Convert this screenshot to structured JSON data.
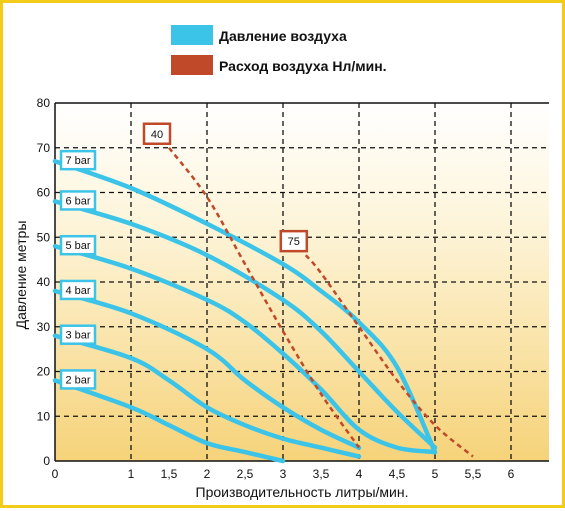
{
  "chart_data": {
    "type": "line",
    "xlabel": "Производительность  литры/мин.",
    "ylabel": "Давление метры",
    "xlim": [
      0,
      6.5
    ],
    "ylim": [
      0,
      80
    ],
    "x_ticks": [
      {
        "v": 0,
        "label": "0"
      },
      {
        "v": 1,
        "label": "1"
      },
      {
        "v": 1.5,
        "label": "1,5"
      },
      {
        "v": 2,
        "label": "2"
      },
      {
        "v": 2.5,
        "label": "2,5"
      },
      {
        "v": 3,
        "label": "3"
      },
      {
        "v": 3.5,
        "label": "3,5"
      },
      {
        "v": 4,
        "label": "4"
      },
      {
        "v": 4.5,
        "label": "4,5"
      },
      {
        "v": 5,
        "label": "5"
      },
      {
        "v": 5.5,
        "label": "5,5"
      },
      {
        "v": 6,
        "label": "6"
      }
    ],
    "y_ticks": [
      0,
      10,
      20,
      30,
      40,
      50,
      60,
      70,
      80
    ],
    "grid": true,
    "legend": {
      "position": "top",
      "entries": [
        {
          "label": "Давление воздуха",
          "color": "#3cc3e8"
        },
        {
          "label": "Расход воздуха  Нл/мин.",
          "color": "#c0492a"
        }
      ]
    },
    "pressure_series": [
      {
        "name": "7 bar",
        "points": [
          [
            0,
            67
          ],
          [
            1,
            61
          ],
          [
            2,
            53
          ],
          [
            3,
            44
          ],
          [
            3.5,
            38
          ],
          [
            4,
            31
          ],
          [
            4.5,
            21
          ],
          [
            5,
            2
          ]
        ]
      },
      {
        "name": "6 bar",
        "points": [
          [
            0,
            58
          ],
          [
            1,
            53
          ],
          [
            2,
            46
          ],
          [
            3,
            36
          ],
          [
            3.5,
            29
          ],
          [
            4,
            20
          ],
          [
            4.5,
            11
          ],
          [
            5,
            3
          ]
        ]
      },
      {
        "name": "5 bar",
        "points": [
          [
            0,
            48
          ],
          [
            1,
            43
          ],
          [
            2,
            36
          ],
          [
            2.5,
            31
          ],
          [
            3,
            24
          ],
          [
            3.5,
            16
          ],
          [
            4,
            7
          ],
          [
            4.5,
            3
          ],
          [
            5,
            2
          ]
        ]
      },
      {
        "name": "4 bar",
        "points": [
          [
            0,
            38
          ],
          [
            1,
            33
          ],
          [
            2,
            25
          ],
          [
            2.5,
            18
          ],
          [
            3,
            12
          ],
          [
            3.5,
            7
          ],
          [
            4,
            3
          ]
        ]
      },
      {
        "name": "3 bar",
        "points": [
          [
            0,
            28
          ],
          [
            1,
            23
          ],
          [
            1.5,
            18
          ],
          [
            2,
            12
          ],
          [
            2.5,
            8
          ],
          [
            3,
            5
          ],
          [
            3.5,
            3
          ],
          [
            4,
            1
          ]
        ]
      },
      {
        "name": "2 bar",
        "points": [
          [
            0,
            18
          ],
          [
            1,
            12
          ],
          [
            1.5,
            8
          ],
          [
            2,
            4
          ],
          [
            2.5,
            2
          ],
          [
            3,
            0
          ]
        ]
      }
    ],
    "airflow_series": [
      {
        "name": "40",
        "points": [
          [
            1.5,
            70
          ],
          [
            2,
            59
          ],
          [
            2.5,
            44
          ],
          [
            3,
            29
          ],
          [
            3.5,
            15
          ],
          [
            4,
            3
          ]
        ]
      },
      {
        "name": "75",
        "points": [
          [
            3.3,
            46
          ],
          [
            3.5,
            42
          ],
          [
            4,
            30
          ],
          [
            4.5,
            18
          ],
          [
            5,
            8
          ],
          [
            5.5,
            1
          ]
        ]
      }
    ]
  }
}
